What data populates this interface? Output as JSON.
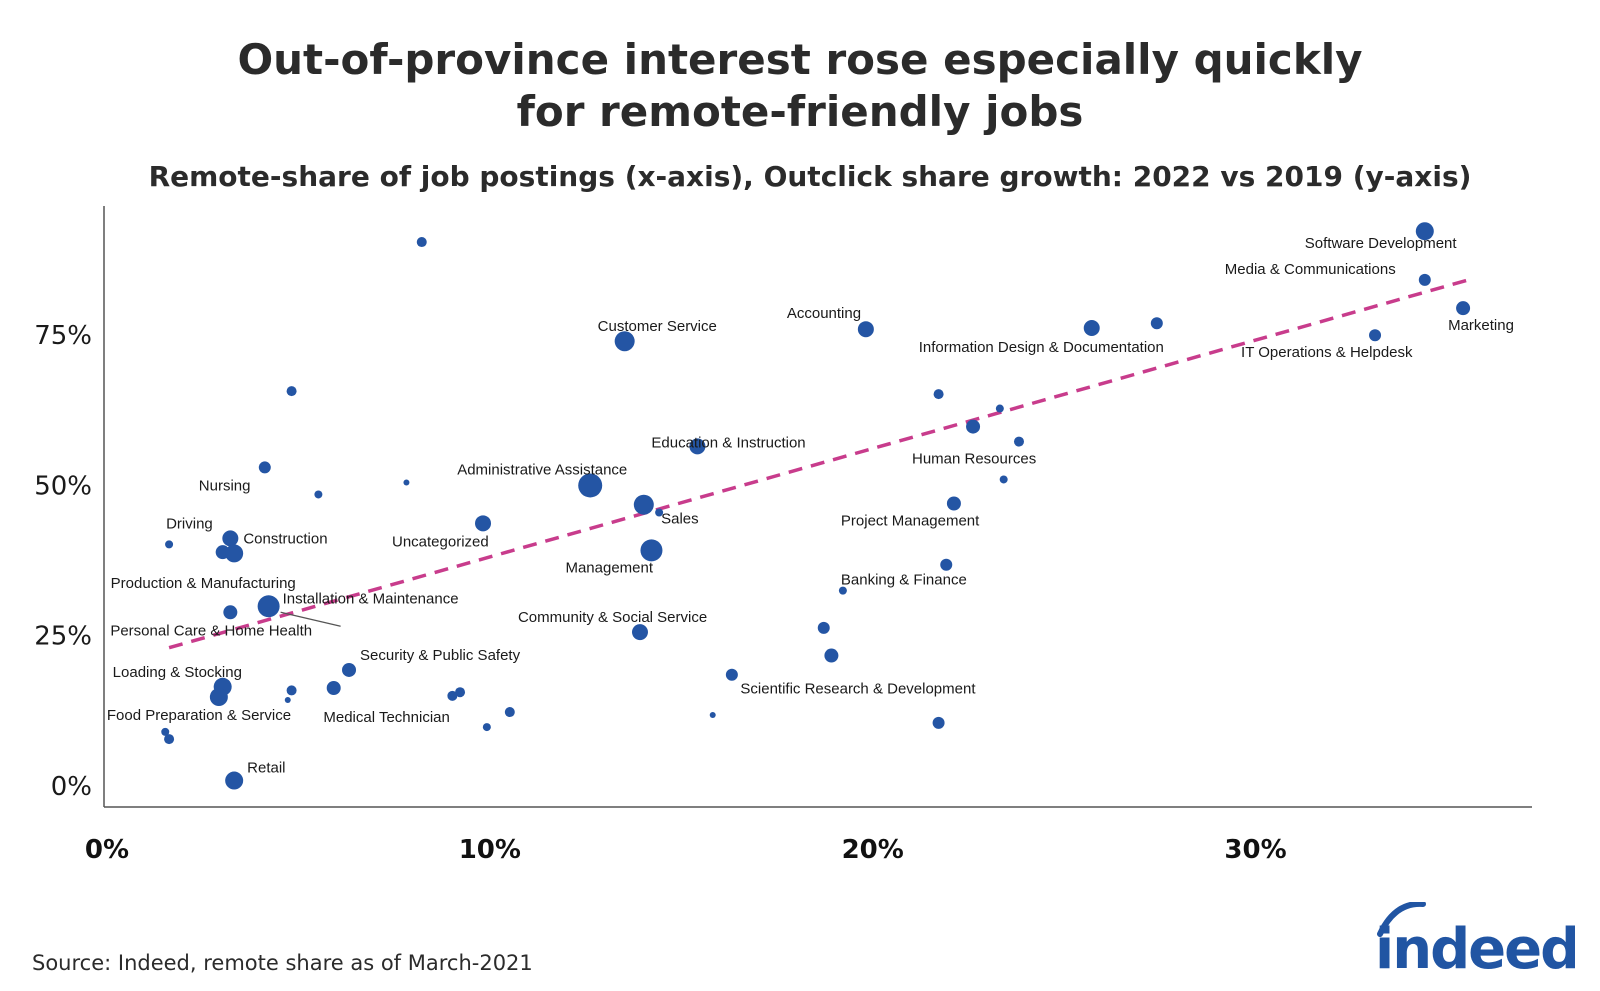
{
  "title_lines": [
    "Out-of-province interest rose especially quickly",
    "for remote-friendly jobs"
  ],
  "subtitle": "Remote-share of job postings (x-axis), Outclick share growth: 2022 vs 2019 (y-axis)",
  "source": "Source: Indeed, remote share as of March-2021",
  "logo_text": "indeed",
  "colors": {
    "point": "#2455a4",
    "trend": "#c83c8c",
    "axis": "#555555",
    "text": "#2b2b2b",
    "logo": "#2155a3"
  },
  "chart_data": {
    "type": "scatter",
    "title": "Out-of-province interest rose especially quickly for remote-friendly jobs",
    "subtitle": "Remote-share of job postings (x-axis), Outclick share growth: 2022 vs 2019 (y-axis)",
    "xlabel": "",
    "ylabel": "",
    "xlim": [
      0,
      37.3
    ],
    "ylim": [
      -3.5,
      96.5
    ],
    "x_ticks": [
      {
        "value": 0,
        "label": "0%"
      },
      {
        "value": 10,
        "label": "10%"
      },
      {
        "value": 20,
        "label": "20%"
      },
      {
        "value": 30,
        "label": "30%"
      }
    ],
    "y_ticks": [
      {
        "value": 0,
        "label": "0%"
      },
      {
        "value": 25,
        "label": "25%"
      },
      {
        "value": 50,
        "label": "50%"
      },
      {
        "value": 75,
        "label": "75%"
      }
    ],
    "grid": false,
    "legend": "none",
    "trendline": {
      "x": [
        1.7,
        35.8
      ],
      "y": [
        23,
        84.5
      ]
    },
    "points": [
      {
        "label": "Software Development",
        "x": 34.5,
        "y": 92.3,
        "size": 9
      },
      {
        "label": "Media & Communications",
        "x": 34.5,
        "y": 84.2,
        "size": 6
      },
      {
        "label": "Marketing",
        "x": 35.5,
        "y": 79.5,
        "size": 7
      },
      {
        "label": "IT Operations & Helpdesk",
        "x": 33.2,
        "y": 75.0,
        "size": 6
      },
      {
        "label": "",
        "x": 27.5,
        "y": 77.0,
        "size": 6
      },
      {
        "label": "Information Design & Documentation",
        "x": 25.8,
        "y": 76.2,
        "size": 8
      },
      {
        "label": "Accounting",
        "x": 19.9,
        "y": 76.0,
        "size": 8
      },
      {
        "label": "Customer Service",
        "x": 13.6,
        "y": 74.0,
        "size": 10
      },
      {
        "label": "",
        "x": 8.3,
        "y": 90.5,
        "size": 5
      },
      {
        "label": "",
        "x": 4.9,
        "y": 65.7,
        "size": 5
      },
      {
        "label": "",
        "x": 21.8,
        "y": 65.2,
        "size": 5
      },
      {
        "label": "",
        "x": 23.4,
        "y": 62.8,
        "size": 4
      },
      {
        "label": "",
        "x": 22.7,
        "y": 59.8,
        "size": 7
      },
      {
        "label": "Human Resources",
        "x": 23.9,
        "y": 57.3,
        "size": 5
      },
      {
        "label": "Education & Instruction",
        "x": 15.5,
        "y": 56.5,
        "size": 8
      },
      {
        "label": "Nursing",
        "x": 4.2,
        "y": 53.0,
        "size": 6
      },
      {
        "label": "",
        "x": 23.5,
        "y": 51.0,
        "size": 4
      },
      {
        "label": "",
        "x": 7.9,
        "y": 50.5,
        "size": 3
      },
      {
        "label": "Administrative Assistance",
        "x": 12.7,
        "y": 50.0,
        "size": 12
      },
      {
        "label": "",
        "x": 5.6,
        "y": 48.5,
        "size": 4
      },
      {
        "label": "",
        "x": 14.1,
        "y": 46.8,
        "size": 10
      },
      {
        "label": "Project Management",
        "x": 22.2,
        "y": 47.0,
        "size": 7
      },
      {
        "label": "Sales",
        "x": 14.5,
        "y": 45.5,
        "size": 4
      },
      {
        "label": "Uncategorized",
        "x": 9.9,
        "y": 43.7,
        "size": 8
      },
      {
        "label": "Construction",
        "x": 3.3,
        "y": 41.2,
        "size": 8
      },
      {
        "label": "Driving",
        "x": 1.7,
        "y": 40.2,
        "size": 4
      },
      {
        "label": "Production & Manufacturing",
        "x": 3.1,
        "y": 38.9,
        "size": 7
      },
      {
        "label": "",
        "x": 3.4,
        "y": 38.7,
        "size": 9
      },
      {
        "label": "Management",
        "x": 14.3,
        "y": 39.2,
        "size": 11
      },
      {
        "label": "",
        "x": 22.0,
        "y": 36.8,
        "size": 6
      },
      {
        "label": "Banking & Finance",
        "x": 19.3,
        "y": 32.5,
        "size": 4
      },
      {
        "label": "Installation & Maintenance",
        "x": 4.3,
        "y": 29.9,
        "size": 11
      },
      {
        "label": "Personal Care & Home Health",
        "x": 3.3,
        "y": 28.9,
        "size": 7
      },
      {
        "label": "Community & Social Service",
        "x": 14.0,
        "y": 25.6,
        "size": 8
      },
      {
        "label": "",
        "x": 18.8,
        "y": 26.3,
        "size": 6
      },
      {
        "label": "Scientific Research & Development",
        "x": 19.0,
        "y": 21.7,
        "size": 7
      },
      {
        "label": "Security & Public Safety",
        "x": 6.4,
        "y": 19.3,
        "size": 7
      },
      {
        "label": "",
        "x": 16.4,
        "y": 18.5,
        "size": 6
      },
      {
        "label": "Loading & Stocking",
        "x": 3.1,
        "y": 16.5,
        "size": 9
      },
      {
        "label": "",
        "x": 6.0,
        "y": 16.3,
        "size": 7
      },
      {
        "label": "",
        "x": 4.9,
        "y": 15.9,
        "size": 5
      },
      {
        "label": "",
        "x": 9.3,
        "y": 15.6,
        "size": 5
      },
      {
        "label": "Medical Technician",
        "x": 9.1,
        "y": 15.0,
        "size": 5
      },
      {
        "label": "Food Preparation & Service",
        "x": 3.0,
        "y": 14.8,
        "size": 9
      },
      {
        "label": "",
        "x": 4.8,
        "y": 14.3,
        "size": 3
      },
      {
        "label": "",
        "x": 10.6,
        "y": 12.3,
        "size": 5
      },
      {
        "label": "",
        "x": 15.9,
        "y": 11.8,
        "size": 3
      },
      {
        "label": "",
        "x": 21.8,
        "y": 10.5,
        "size": 6
      },
      {
        "label": "",
        "x": 10.0,
        "y": 9.8,
        "size": 4
      },
      {
        "label": "",
        "x": 1.6,
        "y": 9.0,
        "size": 4
      },
      {
        "label": "",
        "x": 1.7,
        "y": 7.8,
        "size": 5
      },
      {
        "label": "Retail",
        "x": 3.4,
        "y": 0.9,
        "size": 9
      }
    ]
  }
}
